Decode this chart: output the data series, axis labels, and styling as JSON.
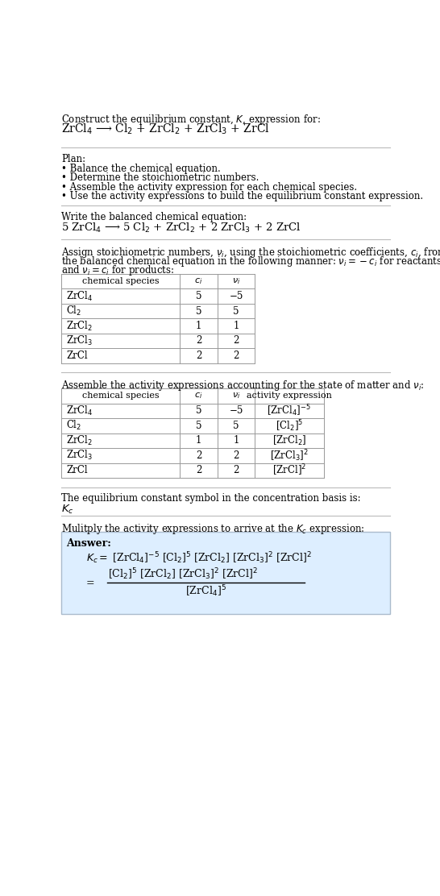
{
  "title_line1": "Construct the equilibrium constant, $K$, expression for:",
  "title_line2": "ZrCl$_4$ ⟶ Cl$_2$ + ZrCl$_2$ + ZrCl$_3$ + ZrCl",
  "plan_header": "Plan:",
  "plan_items": [
    "• Balance the chemical equation.",
    "• Determine the stoichiometric numbers.",
    "• Assemble the activity expression for each chemical species.",
    "• Use the activity expressions to build the equilibrium constant expression."
  ],
  "balanced_eq_header": "Write the balanced chemical equation:",
  "balanced_eq": "5 ZrCl$_4$ ⟶ 5 Cl$_2$ + ZrCl$_2$ + 2 ZrCl$_3$ + 2 ZrCl",
  "assign_lines": [
    "Assign stoichiometric numbers, $\\nu_i$, using the stoichiometric coefficients, $c_i$, from",
    "the balanced chemical equation in the following manner: $\\nu_i = -c_i$ for reactants",
    "and $\\nu_i = c_i$ for products:"
  ],
  "table1_headers": [
    "chemical species",
    "$c_i$",
    "$\\nu_i$"
  ],
  "table1_rows": [
    [
      "ZrCl$_4$",
      "5",
      "−5"
    ],
    [
      "Cl$_2$",
      "5",
      "5"
    ],
    [
      "ZrCl$_2$",
      "1",
      "1"
    ],
    [
      "ZrCl$_3$",
      "2",
      "2"
    ],
    [
      "ZrCl",
      "2",
      "2"
    ]
  ],
  "assemble_text": "Assemble the activity expressions accounting for the state of matter and $\\nu_i$:",
  "table2_headers": [
    "chemical species",
    "$c_i$",
    "$\\nu_i$",
    "activity expression"
  ],
  "table2_rows": [
    [
      "ZrCl$_4$",
      "5",
      "−5",
      "[ZrCl$_4$]$^{-5}$"
    ],
    [
      "Cl$_2$",
      "5",
      "5",
      "[Cl$_2$]$^5$"
    ],
    [
      "ZrCl$_2$",
      "1",
      "1",
      "[ZrCl$_2$]"
    ],
    [
      "ZrCl$_3$",
      "2",
      "2",
      "[ZrCl$_3$]$^2$"
    ],
    [
      "ZrCl",
      "2",
      "2",
      "[ZrCl]$^2$"
    ]
  ],
  "kc_symbol_text": "The equilibrium constant symbol in the concentration basis is:",
  "kc_symbol": "$K_c$",
  "multiply_text": "Mulitply the activity expressions to arrive at the $K_c$ expression:",
  "answer_label": "Answer:",
  "kc_line1": "$K_c = $ [ZrCl$_4$]$^{-5}$ [Cl$_2$]$^5$ [ZrCl$_2$] [ZrCl$_3$]$^2$ [ZrCl]$^2$",
  "kc_line2_num": "[Cl$_2$]$^5$ [ZrCl$_2$] [ZrCl$_3$]$^2$ [ZrCl]$^2$",
  "kc_eq_sign": "=",
  "kc_line2_den": "[ZrCl$_4$]$^5$",
  "bg_color": "#ffffff",
  "answer_box_color": "#ddeeff",
  "answer_box_edge": "#aabbcc",
  "sep_color": "#bbbbbb",
  "table_line_color": "#999999",
  "text_color": "#000000",
  "font_size": 8.5
}
